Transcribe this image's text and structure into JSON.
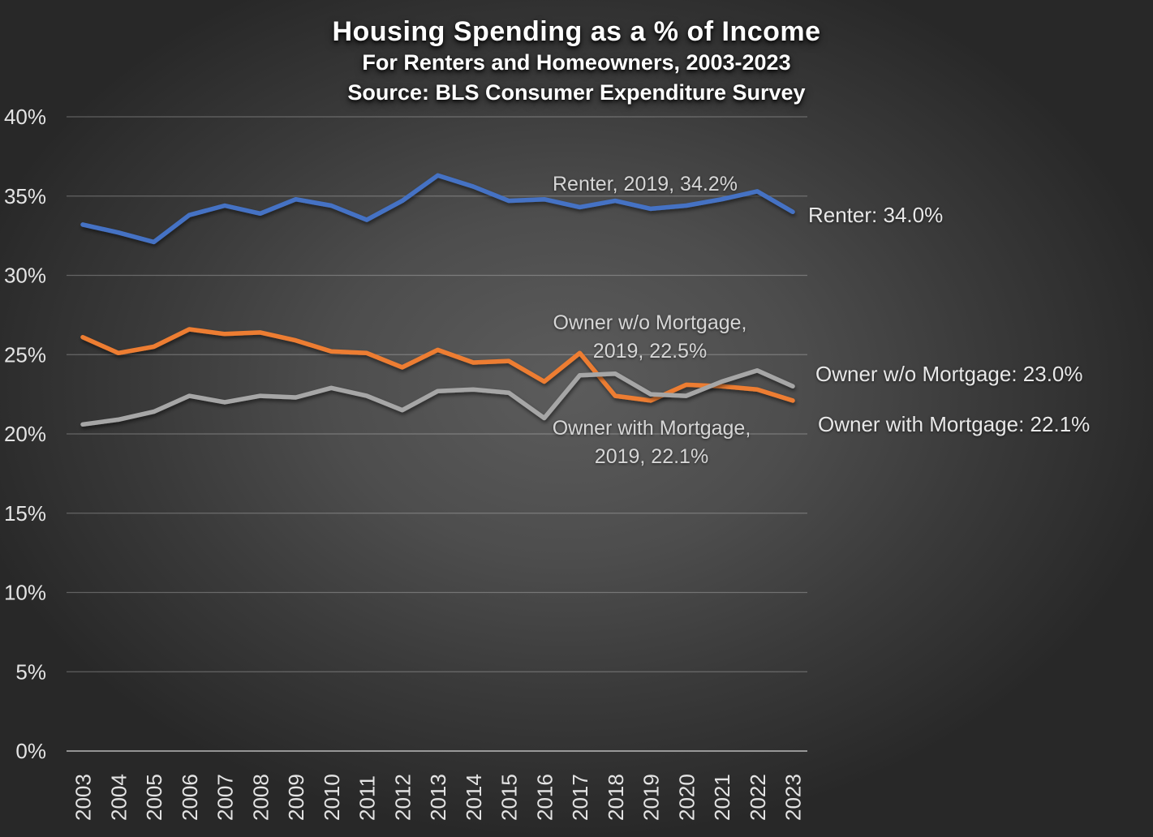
{
  "title": {
    "line1": "Housing Spending as a % of Income",
    "line2": "For Renters and Homeowners, 2003-2023",
    "line3": "Source: BLS Consumer Expenditure Survey"
  },
  "chart_data": {
    "type": "line",
    "title": "Housing Spending as a % of Income",
    "subtitle": "For Renters and Homeowners, 2003-2023",
    "source": "Source: BLS Consumer Expenditure Survey",
    "categories": [
      "2003",
      "2004",
      "2005",
      "2006",
      "2007",
      "2008",
      "2009",
      "2010",
      "2011",
      "2012",
      "2013",
      "2014",
      "2015",
      "2016",
      "2017",
      "2018",
      "2019",
      "2020",
      "2021",
      "2022",
      "2023"
    ],
    "series": [
      {
        "name": "Renter",
        "color": "#4472C4",
        "values": [
          33.2,
          32.7,
          32.1,
          33.8,
          34.4,
          33.9,
          34.8,
          34.4,
          33.5,
          34.7,
          36.3,
          35.6,
          34.7,
          34.8,
          34.3,
          34.7,
          34.2,
          34.4,
          34.8,
          35.3,
          34.0
        ]
      },
      {
        "name": "Owner with Mortgage",
        "color": "#ED7D31",
        "values": [
          26.1,
          25.1,
          25.5,
          26.6,
          26.3,
          26.4,
          25.9,
          25.2,
          25.1,
          24.2,
          25.3,
          24.5,
          24.6,
          23.3,
          25.1,
          22.4,
          22.1,
          23.1,
          23.0,
          22.8,
          22.1
        ]
      },
      {
        "name": "Owner w/o Mortgage",
        "color": "#A6A6A6",
        "values": [
          20.6,
          20.9,
          21.4,
          22.4,
          22.0,
          22.4,
          22.3,
          22.9,
          22.4,
          21.5,
          22.7,
          22.8,
          22.6,
          21.0,
          23.7,
          23.8,
          22.5,
          22.4,
          23.3,
          24.0,
          23.0
        ]
      }
    ],
    "y_ticks": [
      0,
      5,
      10,
      15,
      20,
      25,
      30,
      35,
      40
    ],
    "y_tick_suffix": "%",
    "ylim": [
      0,
      40
    ],
    "grid": true,
    "legend": "none"
  },
  "annotations": {
    "renter_2019": "Renter, 2019, 34.2%",
    "owner_wo_2019_line1": "Owner w/o Mortgage,",
    "owner_wo_2019_line2": "2019, 22.5%",
    "owner_with_2019_line1": "Owner with Mortgage,",
    "owner_with_2019_line2": "2019, 22.1%",
    "end_renter": "Renter: 34.0%",
    "end_owner_wo": "Owner w/o Mortgage: 23.0%",
    "end_owner_with": "Owner with Mortgage: 22.1%"
  },
  "colors": {
    "renter": "#4472C4",
    "owner_with_mortgage": "#ED7D31",
    "owner_wo_mortgage": "#A6A6A6",
    "text": "#e8e8e8",
    "gridline": "rgba(255,255,255,0.25)"
  }
}
